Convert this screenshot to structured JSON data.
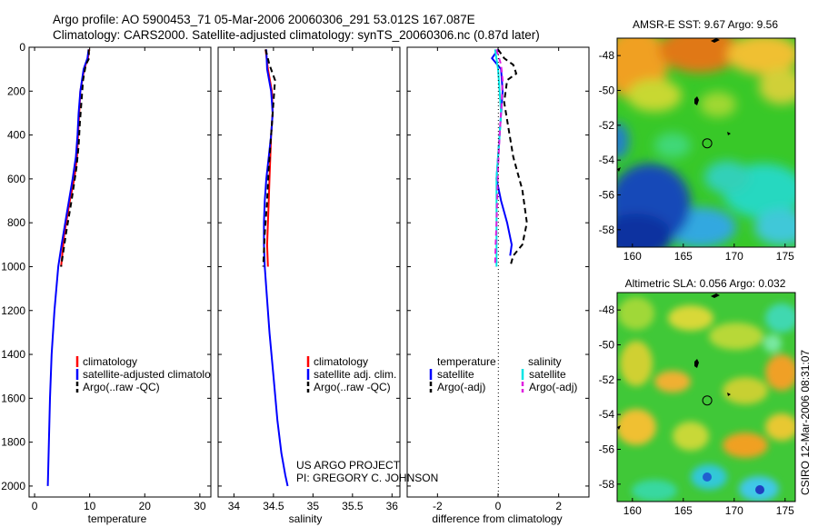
{
  "header": {
    "line1": "Argo profile: AO 5900453_71 05-Mar-2006 20060306_291 53.012S 167.087E",
    "line2": "Climatology: CARS2000. Satellite-adjusted climatology: synTS_20060306.nc (0.87d later)"
  },
  "credits": {
    "project": "US ARGO PROJECT",
    "pi": "PI: GREGORY C. JOHNSON",
    "stamp": "CSIRO 12-Mar-2006 08:31:07"
  },
  "colors": {
    "climatology": "#ff0000",
    "satellite": "#0000ff",
    "argo": "#000000",
    "sal_satellite": "#00e5e5",
    "sal_argo": "#e020e0"
  },
  "chart_data": [
    {
      "type": "line",
      "name": "temperature-profile",
      "xlabel": "temperature",
      "ylabel": "",
      "xlim": [
        -1,
        32
      ],
      "ylim": [
        2050,
        0
      ],
      "xticks": [
        0,
        10,
        20,
        30
      ],
      "xtick_labels": [
        "0",
        "10",
        "20",
        "30"
      ],
      "yticks": [
        0,
        200,
        400,
        600,
        800,
        1000,
        1200,
        1400,
        1600,
        1800,
        2000
      ],
      "ytick_labels": [
        "0",
        "200",
        "400",
        "600",
        "800",
        "1000",
        "1200",
        "1400",
        "1600",
        "1800",
        "2000"
      ],
      "legend": [
        "climatology",
        "satellite-adjusted climatology",
        "Argo(..raw -QC)"
      ],
      "series": [
        {
          "name": "climatology",
          "color": "#ff0000",
          "style": "solid",
          "x": [
            9.9,
            9.7,
            9.0,
            8.3,
            8.1,
            7.9,
            7.7,
            7.2,
            6.4,
            5.4,
            4.8
          ],
          "y": [
            10,
            50,
            100,
            200,
            300,
            400,
            500,
            600,
            700,
            850,
            1000
          ]
        },
        {
          "name": "satellite-adjusted climatology",
          "color": "#0000ff",
          "style": "solid",
          "x": [
            9.8,
            9.6,
            8.9,
            8.3,
            8.0,
            7.8,
            7.5,
            6.9,
            5.9,
            4.9,
            4.3,
            3.6,
            3.1,
            2.8,
            2.6,
            2.5,
            2.4
          ],
          "y": [
            10,
            50,
            100,
            200,
            300,
            400,
            500,
            600,
            750,
            900,
            1000,
            1200,
            1400,
            1600,
            1800,
            1900,
            2000
          ]
        },
        {
          "name": "Argo(..raw -QC)",
          "color": "#000000",
          "style": "dashed",
          "x": [
            9.8,
            9.9,
            9.3,
            8.8,
            8.5,
            8.2,
            8.0,
            7.6,
            6.7,
            5.7,
            4.8
          ],
          "y": [
            10,
            50,
            80,
            150,
            250,
            350,
            450,
            550,
            700,
            850,
            1000
          ]
        }
      ]
    },
    {
      "type": "line",
      "name": "salinity-profile",
      "xlabel": "salinity",
      "xlim": [
        33.8,
        36.1
      ],
      "ylim": [
        2050,
        0
      ],
      "xticks": [
        34,
        34.5,
        35,
        35.5,
        36
      ],
      "xtick_labels": [
        "34",
        "34.5",
        "35",
        "35.5",
        "36"
      ],
      "legend": [
        "climatology",
        "satellite adj. clim.",
        "Argo(..raw -QC)"
      ],
      "series": [
        {
          "name": "climatology",
          "color": "#ff0000",
          "style": "solid",
          "x": [
            34.4,
            34.43,
            34.48,
            34.49,
            34.47,
            34.46,
            34.45,
            34.44,
            34.43,
            34.42,
            34.43
          ],
          "y": [
            10,
            100,
            200,
            300,
            400,
            500,
            600,
            700,
            800,
            900,
            1000
          ]
        },
        {
          "name": "satellite adj. clim.",
          "color": "#0000ff",
          "style": "solid",
          "x": [
            34.41,
            34.42,
            34.47,
            34.49,
            34.47,
            34.44,
            34.41,
            34.39,
            34.38,
            34.38,
            34.39,
            34.41,
            34.45,
            34.5,
            34.55,
            34.6,
            34.65,
            34.68
          ],
          "y": [
            10,
            100,
            200,
            300,
            400,
            500,
            600,
            700,
            800,
            900,
            1000,
            1100,
            1300,
            1500,
            1700,
            1850,
            1950,
            2000
          ]
        },
        {
          "name": "Argo(..raw -QC)",
          "color": "#000000",
          "style": "dashed",
          "x": [
            34.4,
            34.45,
            34.52,
            34.5,
            34.47,
            34.44,
            34.42,
            34.39,
            34.37
          ],
          "y": [
            10,
            80,
            150,
            250,
            400,
            550,
            700,
            850,
            1000
          ]
        }
      ]
    },
    {
      "type": "line",
      "name": "difference-from-climatology",
      "xlabel": "difference from climatology",
      "xlim": [
        -3,
        3
      ],
      "ylim": [
        2050,
        0
      ],
      "xticks": [
        -2,
        0,
        2
      ],
      "xtick_labels": [
        "-2",
        "0",
        "2"
      ],
      "legend_headers": [
        "temperature",
        "salinity"
      ],
      "legend": [
        "satellite",
        "Argo(-adj)",
        "satellite",
        "Argo(-adj)"
      ],
      "series": [
        {
          "name": "temperature satellite",
          "color": "#0000ff",
          "style": "solid",
          "x": [
            0,
            -0.2,
            0.1,
            0.15,
            0.1,
            0.05,
            0,
            -0.05,
            0.1,
            0.3,
            0.45,
            0.4
          ],
          "y": [
            10,
            50,
            100,
            200,
            300,
            400,
            500,
            600,
            700,
            800,
            900,
            950
          ]
        },
        {
          "name": "temperature Argo(-adj)",
          "color": "#000000",
          "style": "dashed",
          "x": [
            0,
            0.2,
            0.5,
            0.6,
            0.3,
            0.2,
            0.5,
            0.8,
            0.95,
            0.8,
            0.5,
            0.4
          ],
          "y": [
            10,
            50,
            80,
            120,
            150,
            250,
            500,
            650,
            800,
            900,
            950,
            1000
          ]
        },
        {
          "name": "salinity satellite",
          "color": "#00e5e5",
          "style": "solid",
          "x": [
            -0.1,
            0,
            0.05,
            0.1,
            0.05,
            0,
            -0.05,
            -0.05,
            -0.05,
            -0.05
          ],
          "y": [
            10,
            100,
            200,
            300,
            400,
            500,
            600,
            700,
            850,
            1000
          ]
        },
        {
          "name": "salinity Argo(-adj)",
          "color": "#e020e0",
          "style": "dashed",
          "x": [
            -0.05,
            0.1,
            0.15,
            0.12,
            0.05,
            0.0,
            -0.03,
            -0.05,
            -0.08,
            -0.1
          ],
          "y": [
            10,
            80,
            150,
            250,
            400,
            550,
            700,
            800,
            900,
            1000
          ]
        }
      ]
    },
    {
      "type": "heatmap",
      "name": "amsr-sst-map",
      "title": "AMSR-E SST: 9.67 Argo: 9.56",
      "xlim": [
        158.5,
        176
      ],
      "ylim": [
        -59,
        -47
      ],
      "xticks": [
        160,
        165,
        170,
        175
      ],
      "xtick_labels": [
        "160",
        "165",
        "170",
        "175"
      ],
      "yticks": [
        -48,
        -50,
        -52,
        -54,
        -56,
        -58
      ],
      "ytick_labels": [
        "-48",
        "-50",
        "-52",
        "-54",
        "-56",
        "-58"
      ],
      "marker": {
        "lon": 167.087,
        "lat": -53.012
      }
    },
    {
      "type": "heatmap",
      "name": "altimetric-sla-map",
      "title": "Altimetric SLA: 0.056 Argo: 0.032",
      "xlim": [
        158.5,
        176
      ],
      "ylim": [
        -59,
        -47
      ],
      "xticks": [
        160,
        165,
        170,
        175
      ],
      "xtick_labels": [
        "160",
        "165",
        "170",
        "175"
      ],
      "yticks": [
        -48,
        -50,
        -52,
        -54,
        -56,
        -58
      ],
      "ytick_labels": [
        "-48",
        "-50",
        "-52",
        "-54",
        "-56",
        "-58"
      ],
      "marker": {
        "lon": 167.087,
        "lat": -53.012
      }
    }
  ]
}
